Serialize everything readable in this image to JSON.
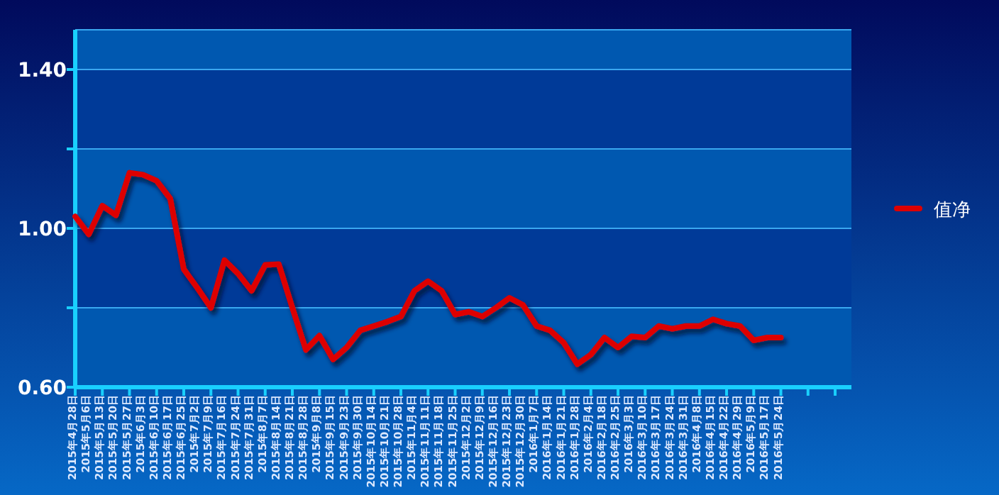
{
  "chart_data": {
    "type": "line",
    "categories": [
      "2015年4月28日",
      "2015年5月6日",
      "2015年5月13日",
      "2015年5月20日",
      "2015年5月27日",
      "2015年6月3日",
      "2015年6月10日",
      "2015年6月17日",
      "2015年6月25日",
      "2015年7月2日",
      "2015年7月9日",
      "2015年7月16日",
      "2015年7月24日",
      "2015年7月31日",
      "2015年8月7日",
      "2015年8月14日",
      "2015年8月21日",
      "2015年8月28日",
      "2015年9月8日",
      "2015年9月15日",
      "2015年9月23日",
      "2015年9月30日",
      "2015年10月14日",
      "2015年10月21日",
      "2015年10月28日",
      "2015年11月4日",
      "2015年11月11日",
      "2015年11月18日",
      "2015年11月25日",
      "2015年12月2日",
      "2015年12月9日",
      "2015年12月16日",
      "2015年12月23日",
      "2015年12月30日",
      "2016年1月7日",
      "2016年1月14日",
      "2016年1月21日",
      "2016年1月28日",
      "2016年2月4日",
      "2016年2月18日",
      "2016年2月25日",
      "2016年3月3日",
      "2016年3月10日",
      "2016年3月17日",
      "2016年3月24日",
      "2016年3月31日",
      "2016年4月8日",
      "2016年4月15日",
      "2016年4月22日",
      "2016年4月29日",
      "2016年5月9日",
      "2016年5月17日",
      "2016年5月24日",
      null,
      null,
      null,
      null,
      null
    ],
    "series": [
      {
        "name": "值净",
        "color": "#dd0000",
        "values": [
          1.03,
          0.985,
          1.057,
          1.033,
          1.14,
          1.135,
          1.12,
          1.075,
          0.897,
          0.85,
          0.8,
          0.92,
          0.886,
          0.843,
          0.908,
          0.91,
          0.8,
          0.694,
          0.73,
          0.67,
          0.7,
          0.743,
          0.754,
          0.765,
          0.778,
          0.843,
          0.867,
          0.843,
          0.783,
          0.79,
          0.778,
          0.8,
          0.825,
          0.807,
          0.754,
          0.743,
          0.712,
          0.658,
          0.682,
          0.725,
          0.7,
          0.728,
          0.725,
          0.754,
          0.747,
          0.754,
          0.754,
          0.771,
          0.76,
          0.754,
          0.718,
          0.725,
          0.725,
          null,
          null,
          null,
          null,
          null
        ]
      }
    ],
    "ylim": [
      0.6,
      1.5
    ],
    "yticks": [
      {
        "value": 0.6,
        "label": "0.60"
      },
      {
        "value": 0.8,
        "label": null
      },
      {
        "value": 1.0,
        "label": "1.00"
      },
      {
        "value": 1.2,
        "label": null
      },
      {
        "value": 1.4,
        "label": "1.40"
      }
    ],
    "bands": [
      {
        "axis": "y",
        "from": 0.6,
        "to": 0.8,
        "color": "#0058b0"
      },
      {
        "axis": "y",
        "from": 0.8,
        "to": 1.0,
        "color": "#003a98"
      },
      {
        "axis": "y",
        "from": 1.0,
        "to": 1.2,
        "color": "#0058b0"
      },
      {
        "axis": "y",
        "from": 1.2,
        "to": 1.4,
        "color": "#003a98"
      },
      {
        "axis": "y",
        "from": 1.4,
        "to": 1.5,
        "color": "#0058b0"
      }
    ],
    "grid": "y",
    "legend": "right",
    "line_style": "solid"
  }
}
